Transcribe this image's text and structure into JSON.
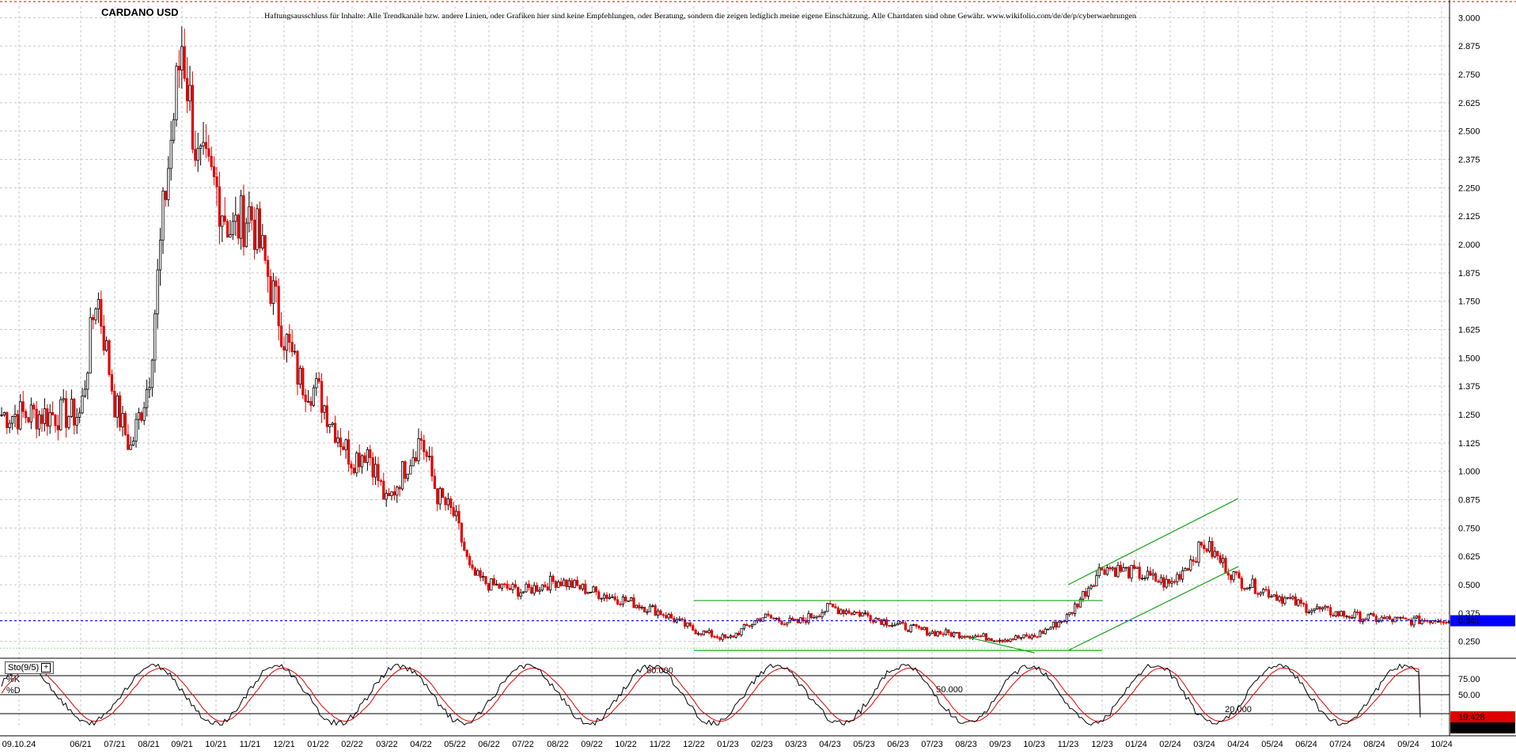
{
  "chart_data": {
    "type": "candlestick",
    "title": "CARDANO USD",
    "disclaimer": "Haftungsausschluss für Inhalte: Alle Trendkanäle bzw. andere Linien, oder Grafiken hier sind keine Empfehlungen, oder Beratung, sondern die zeigen lediglich meine eigene Einschätzung. Alle Chartdaten sind ohne Gewähr.  www.wikifolio.com/de/de/p/cyberwaehrungen",
    "x_tick_labels": [
      "09.10.24",
      "06/21",
      "07/21",
      "08/21",
      "09/21",
      "10/21",
      "11/21",
      "12/21",
      "01/22",
      "02/22",
      "03/22",
      "04/22",
      "05/22",
      "06/22",
      "07/22",
      "08/22",
      "09/22",
      "10/22",
      "11/22",
      "12/22",
      "01/23",
      "02/23",
      "03/23",
      "04/23",
      "05/23",
      "06/23",
      "07/23",
      "08/23",
      "09/23",
      "10/23",
      "11/23",
      "12/23",
      "01/24",
      "02/24",
      "03/24",
      "04/24",
      "05/24",
      "06/24",
      "07/24",
      "08/24",
      "09/24",
      "10/24"
    ],
    "y_tick_labels": [
      "3.000",
      "2.875",
      "2.750",
      "2.625",
      "2.500",
      "2.375",
      "2.250",
      "2.125",
      "2.000",
      "1.875",
      "1.750",
      "1.625",
      "1.500",
      "1.375",
      "1.250",
      "1.125",
      "1.000",
      "0.875",
      "0.750",
      "0.625",
      "0.500",
      "0.375",
      "0.250"
    ],
    "ylim": [
      0.2,
      3.05
    ],
    "y_scale": "linear",
    "grid": true,
    "colors": {
      "up": "#000000",
      "down": "#e00000",
      "trend": "#1aa01a",
      "current": "#0000ff",
      "current_badge": "#0000ff",
      "stoch_k": "#000000",
      "stoch_d": "#e00000"
    },
    "price_path": [
      [
        "06/21",
        1.25
      ],
      [
        "06/21",
        1.8
      ],
      [
        "07/21",
        1.3
      ],
      [
        "07/21",
        1.1
      ],
      [
        "08/21",
        1.4
      ],
      [
        "08/21",
        2.2
      ],
      [
        "09/21",
        2.9
      ],
      [
        "09/21",
        2.35
      ],
      [
        "10/21",
        2.25
      ],
      [
        "10/21",
        2.05
      ],
      [
        "11/21",
        2.15
      ],
      [
        "11/21",
        1.9
      ],
      [
        "12/21",
        1.6
      ],
      [
        "12/21",
        1.4
      ],
      [
        "01/22",
        1.35
      ],
      [
        "01/22",
        1.2
      ],
      [
        "02/22",
        1.05
      ],
      [
        "02/22",
        1.1
      ],
      [
        "03/22",
        0.85
      ],
      [
        "03/22",
        1.0
      ],
      [
        "04/22",
        1.15
      ],
      [
        "04/22",
        0.9
      ],
      [
        "05/22",
        0.8
      ],
      [
        "05/22",
        0.55
      ],
      [
        "06/22",
        0.5
      ],
      [
        "07/22",
        0.47
      ],
      [
        "08/22",
        0.52
      ],
      [
        "09/22",
        0.47
      ],
      [
        "10/22",
        0.43
      ],
      [
        "11/22",
        0.38
      ],
      [
        "12/22",
        0.3
      ],
      [
        "01/23",
        0.26
      ],
      [
        "02/23",
        0.36
      ],
      [
        "03/23",
        0.33
      ],
      [
        "04/23",
        0.4
      ],
      [
        "05/23",
        0.37
      ],
      [
        "06/23",
        0.32
      ],
      [
        "07/23",
        0.29
      ],
      [
        "08/23",
        0.28
      ],
      [
        "09/23",
        0.26
      ],
      [
        "10/23",
        0.27
      ],
      [
        "11/23",
        0.36
      ],
      [
        "12/23",
        0.58
      ],
      [
        "01/24",
        0.55
      ],
      [
        "02/24",
        0.5
      ],
      [
        "03/24",
        0.68
      ],
      [
        "04/24",
        0.52
      ],
      [
        "05/24",
        0.46
      ],
      [
        "06/24",
        0.4
      ],
      [
        "07/24",
        0.37
      ],
      [
        "08/24",
        0.35
      ],
      [
        "09/24",
        0.34
      ],
      [
        "10/24",
        0.35
      ],
      [
        "10/24",
        0.341
      ]
    ],
    "current_price": {
      "value": 0.341,
      "label": "0.341"
    },
    "trend_lines": [
      {
        "name": "range-top",
        "points": [
          [
            "12/22",
            0.43
          ],
          [
            "12/23",
            0.43
          ]
        ]
      },
      {
        "name": "range-bottom",
        "points": [
          [
            "12/22",
            0.21
          ],
          [
            "12/23",
            0.21
          ]
        ]
      },
      {
        "name": "channel-upper",
        "points": [
          [
            "11/23",
            0.5
          ],
          [
            "04/24",
            0.88
          ]
        ]
      },
      {
        "name": "channel-lower",
        "points": [
          [
            "11/23",
            0.21
          ],
          [
            "04/24",
            0.58
          ]
        ]
      },
      {
        "name": "wedge-line",
        "points": [
          [
            "08/23",
            0.27
          ],
          [
            "10/23",
            0.2
          ]
        ]
      }
    ],
    "stochastic": {
      "label": "Sto(9/5)",
      "k_label": "%K",
      "d_label": "%D",
      "ylim": [
        0,
        100
      ],
      "y_tick_labels": [
        "75.00",
        "50.00"
      ],
      "levels": [
        {
          "value": 80,
          "label": "80.000"
        },
        {
          "value": 50,
          "label": "50.000"
        },
        {
          "value": 20,
          "label": "20.000"
        }
      ],
      "k_value": 14.177,
      "k_label_value": "14.177",
      "d_value": 19.428,
      "d_label_value": "19.428"
    }
  }
}
